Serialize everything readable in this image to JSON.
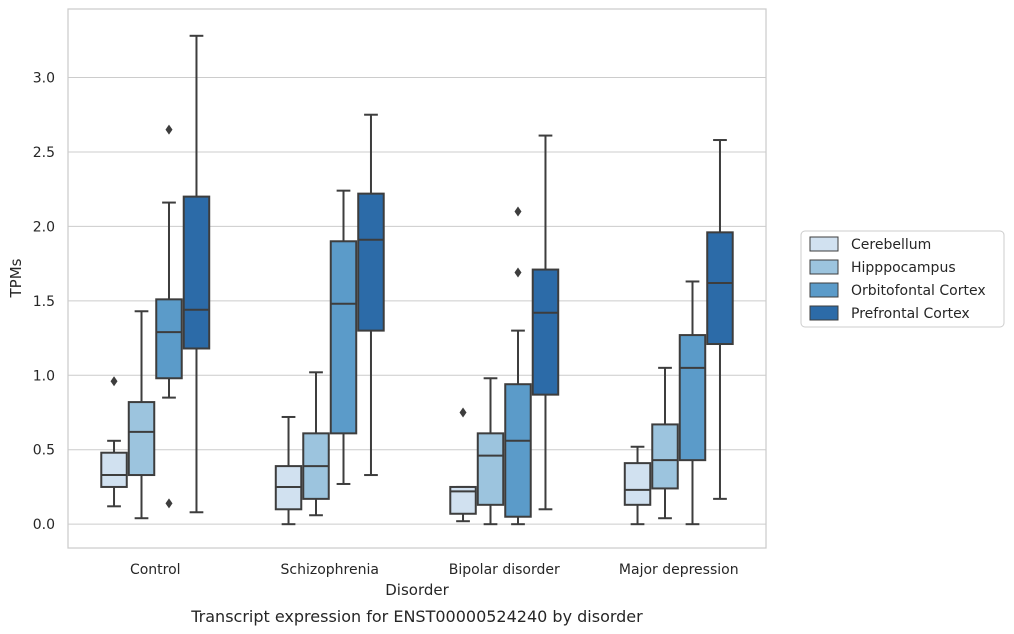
{
  "chart_data": {
    "type": "box",
    "title": "",
    "caption": "Transcript expression for ENST00000524240 by disorder",
    "xlabel": "Disorder",
    "ylabel": "TPMs",
    "ylim": [
      -0.16,
      3.46
    ],
    "yticks": [
      "0.0",
      "0.5",
      "1.0",
      "1.5",
      "2.0",
      "2.5",
      "3.0"
    ],
    "grid": "horizontal",
    "legend_position": "right",
    "categories": [
      "Control",
      "Schizophrenia",
      "Bipolar disorder",
      "Major depression"
    ],
    "series": [
      {
        "name": "Cerebellum",
        "color": "#d1e1f0",
        "boxes": [
          {
            "whisker_low": 0.12,
            "q1": 0.25,
            "median": 0.33,
            "q3": 0.48,
            "whisker_high": 0.56,
            "outliers": [
              0.96
            ]
          },
          {
            "whisker_low": 0.0,
            "q1": 0.1,
            "median": 0.25,
            "q3": 0.39,
            "whisker_high": 0.72,
            "outliers": []
          },
          {
            "whisker_low": 0.02,
            "q1": 0.07,
            "median": 0.22,
            "q3": 0.25,
            "whisker_high": 0.25,
            "outliers": [
              0.75
            ]
          },
          {
            "whisker_low": 0.0,
            "q1": 0.13,
            "median": 0.23,
            "q3": 0.41,
            "whisker_high": 0.52,
            "outliers": []
          }
        ]
      },
      {
        "name": "Hipppocampus",
        "color": "#9cc4de",
        "boxes": [
          {
            "whisker_low": 0.04,
            "q1": 0.33,
            "median": 0.62,
            "q3": 0.82,
            "whisker_high": 1.43,
            "outliers": []
          },
          {
            "whisker_low": 0.06,
            "q1": 0.17,
            "median": 0.39,
            "q3": 0.61,
            "whisker_high": 1.02,
            "outliers": []
          },
          {
            "whisker_low": 0.0,
            "q1": 0.13,
            "median": 0.46,
            "q3": 0.61,
            "whisker_high": 0.98,
            "outliers": []
          },
          {
            "whisker_low": 0.04,
            "q1": 0.24,
            "median": 0.43,
            "q3": 0.67,
            "whisker_high": 1.05,
            "outliers": []
          }
        ]
      },
      {
        "name": "Orbitofontal Cortex",
        "color": "#5b9bc9",
        "boxes": [
          {
            "whisker_low": 0.85,
            "q1": 0.98,
            "median": 1.29,
            "q3": 1.51,
            "whisker_high": 2.16,
            "outliers": [
              0.14,
              2.65
            ]
          },
          {
            "whisker_low": 0.27,
            "q1": 0.61,
            "median": 1.48,
            "q3": 1.9,
            "whisker_high": 2.24,
            "outliers": []
          },
          {
            "whisker_low": 0.0,
            "q1": 0.05,
            "median": 0.56,
            "q3": 0.94,
            "whisker_high": 1.3,
            "outliers": [
              1.69,
              2.1
            ]
          },
          {
            "whisker_low": 0.0,
            "q1": 0.43,
            "median": 1.05,
            "q3": 1.27,
            "whisker_high": 1.63,
            "outliers": []
          }
        ]
      },
      {
        "name": "Prefrontal Cortex",
        "color": "#2c6ba8",
        "boxes": [
          {
            "whisker_low": 0.08,
            "q1": 1.18,
            "median": 1.44,
            "q3": 2.2,
            "whisker_high": 3.28,
            "outliers": []
          },
          {
            "whisker_low": 0.33,
            "q1": 1.3,
            "median": 1.91,
            "q3": 2.22,
            "whisker_high": 2.75,
            "outliers": []
          },
          {
            "whisker_low": 0.1,
            "q1": 0.87,
            "median": 1.42,
            "q3": 1.71,
            "whisker_high": 2.61,
            "outliers": []
          },
          {
            "whisker_low": 0.17,
            "q1": 1.21,
            "median": 1.62,
            "q3": 1.96,
            "whisker_high": 2.58,
            "outliers": []
          }
        ]
      }
    ]
  }
}
